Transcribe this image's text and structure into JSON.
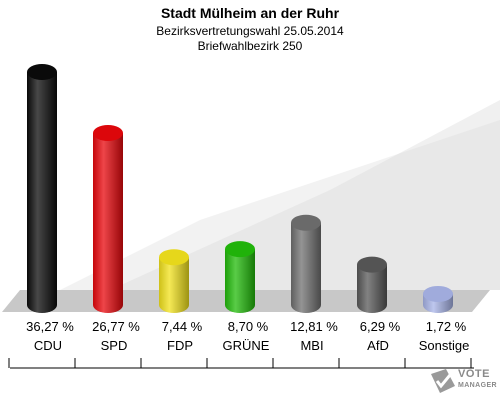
{
  "header": {
    "title": "Stadt Mülheim an der Ruhr",
    "subtitle1": "Bezirksvertretungswahl 25.05.2014",
    "subtitle2": "Briefwahlbezirk 250"
  },
  "watermark": {
    "line1": "VOTE",
    "line2": "MANAGER"
  },
  "chart_data": {
    "type": "bar",
    "title": "Stadt Mülheim an der Ruhr",
    "categories": [
      "CDU",
      "SPD",
      "FDP",
      "GRÜNE",
      "MBI",
      "AfD",
      "Sonstige"
    ],
    "values": [
      36.27,
      26.77,
      7.44,
      8.7,
      12.81,
      6.29,
      1.72
    ],
    "value_labels": [
      "36,27 %",
      "26,77 %",
      "7,44 %",
      "8,70 %",
      "12,81 %",
      "6,29 %",
      "1,72 %"
    ],
    "colors": [
      "#0b0b0b",
      "#e8070c",
      "#f2e21c",
      "#22bb0a",
      "#707070",
      "#585858",
      "#a8b4e8"
    ],
    "ylim": [
      0,
      36.27
    ],
    "grid": false,
    "legend": "none"
  }
}
